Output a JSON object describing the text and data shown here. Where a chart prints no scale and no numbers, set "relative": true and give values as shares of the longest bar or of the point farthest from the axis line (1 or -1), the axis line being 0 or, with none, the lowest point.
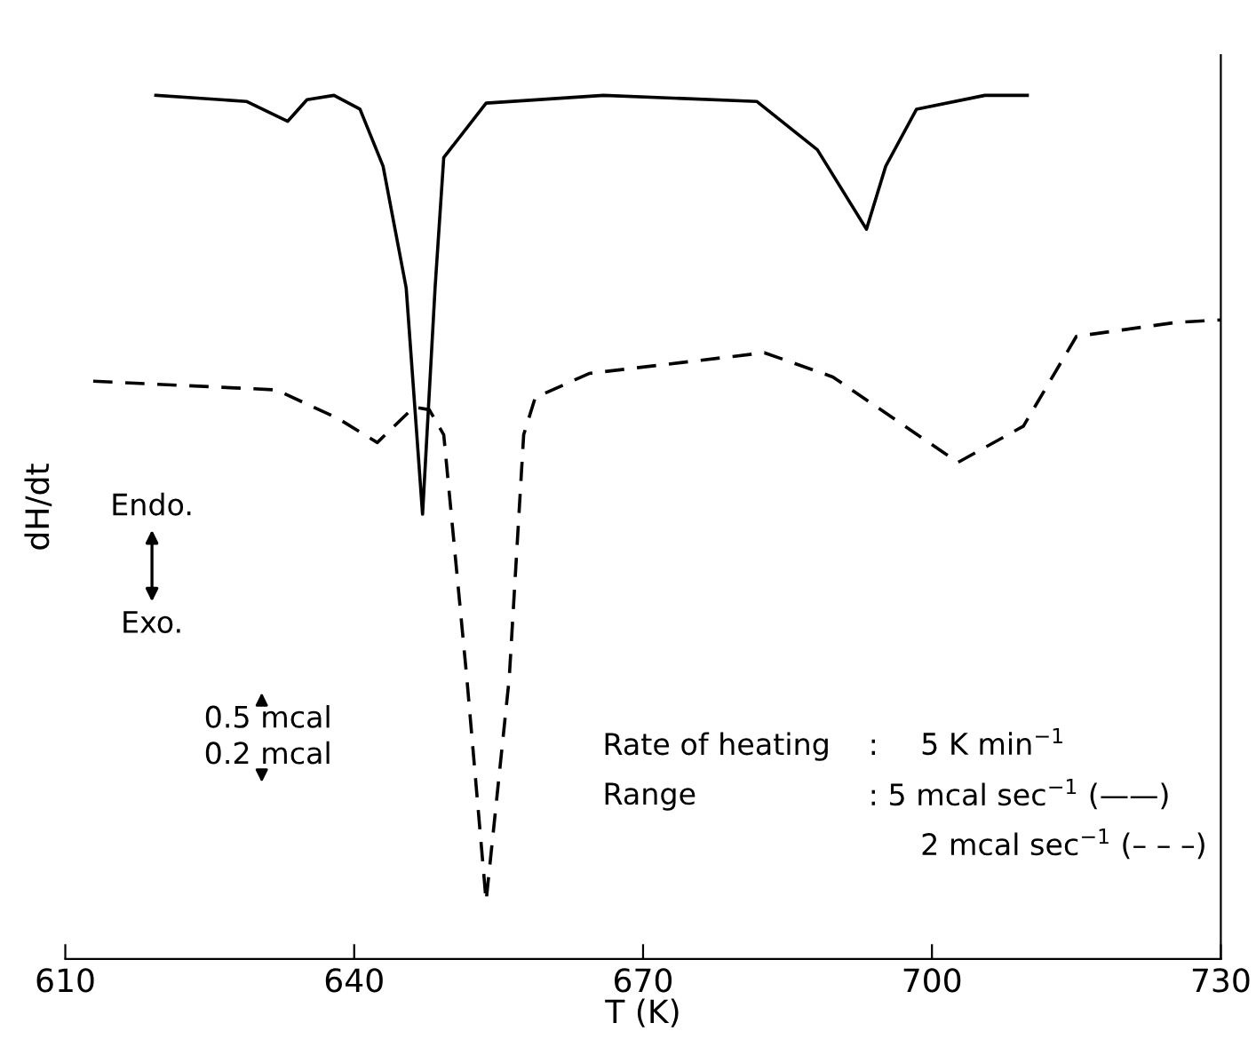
{
  "chart_data": {
    "type": "line",
    "relative": true,
    "xlabel": "T (K)",
    "ylabel": "dH/dt",
    "xlim": [
      610,
      730
    ],
    "xticks": [
      610,
      640,
      670,
      700,
      730
    ],
    "grid": false,
    "legend": false,
    "marker": "none",
    "series": [
      {
        "color": "#000000",
        "line_style": "solid",
        "x": [
          619.4,
          628.8,
          633.1,
          635.1,
          637.9,
          640.6,
          643.0,
          645.4,
          647.1,
          648.4,
          649.3,
          653.7,
          665.9,
          681.8,
          688.1,
          693.2,
          695.2,
          698.4,
          705.5,
          709.9
        ],
        "values": [
          1.0,
          0.993,
          0.97,
          0.995,
          1.0,
          0.984,
          0.918,
          0.777,
          0.515,
          0.777,
          0.928,
          0.991,
          1.0,
          0.993,
          0.937,
          0.845,
          0.918,
          0.984,
          1.0,
          1.0
        ]
      },
      {
        "color": "#000000",
        "line_style": "dashed",
        "x": [
          612.9,
          631.9,
          638.3,
          642.4,
          646.2,
          647.8,
          649.3,
          651.7,
          653.7,
          656.1,
          657.6,
          658.8,
          664.4,
          682.6,
          689.7,
          702.7,
          709.5,
          715.0,
          725.3,
          730.0
        ],
        "values": [
          0.669,
          0.659,
          0.626,
          0.598,
          0.639,
          0.636,
          0.607,
          0.325,
          0.067,
          0.325,
          0.607,
          0.65,
          0.678,
          0.702,
          0.674,
          0.575,
          0.617,
          0.721,
          0.737,
          0.74
        ]
      }
    ],
    "annotations": [
      "Endo.",
      "Exo.",
      "0.5 mcal",
      "0.2 mcal",
      "Rate of heating",
      ":",
      "5 K min$^{−1}$",
      "Range",
      ": 5 mcal sec$^{−1}$ (——)",
      "2 mcal sec$^{−1}$ (– – –)"
    ]
  }
}
